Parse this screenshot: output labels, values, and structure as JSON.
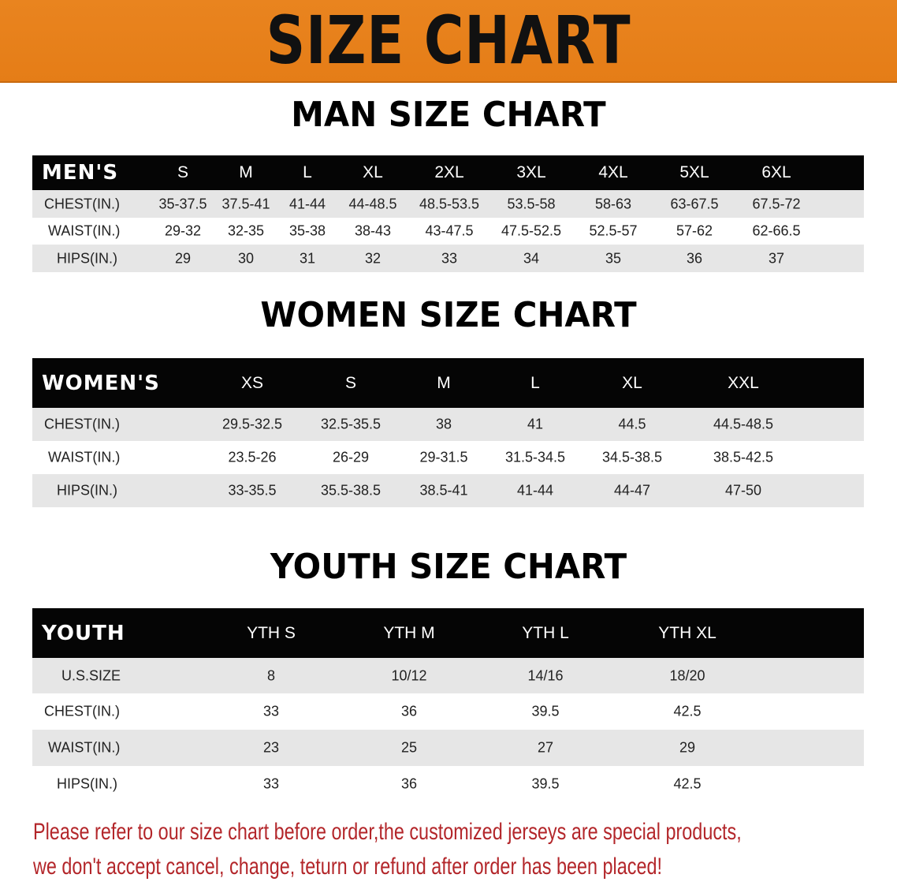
{
  "banner": {
    "title": "SIZE CHART",
    "color": "#e8821e"
  },
  "men": {
    "title": "MAN SIZE CHART",
    "header": [
      "MEN'S",
      "S",
      "M",
      "L",
      "XL",
      "2XL",
      "3XL",
      "4XL",
      "5XL",
      "6XL"
    ],
    "rows": [
      [
        "CHEST(IN.)",
        "35-37.5",
        "37.5-41",
        "41-44",
        "44-48.5",
        "48.5-53.5",
        "53.5-58",
        "58-63",
        "63-67.5",
        "67.5-72"
      ],
      [
        "WAIST(IN.)",
        "29-32",
        "32-35",
        "35-38",
        "38-43",
        "43-47.5",
        "47.5-52.5",
        "52.5-57",
        "57-62",
        "62-66.5"
      ],
      [
        "HIPS(IN.)",
        "29",
        "30",
        "31",
        "32",
        "33",
        "34",
        "35",
        "36",
        "37"
      ]
    ]
  },
  "women": {
    "title": "WOMEN SIZE CHART",
    "header": [
      "WOMEN'S",
      "XS",
      "S",
      "M",
      "L",
      "XL",
      "XXL"
    ],
    "rows": [
      [
        "CHEST(IN.)",
        "29.5-32.5",
        "32.5-35.5",
        "38",
        "41",
        "44.5",
        "44.5-48.5"
      ],
      [
        "WAIST(IN.)",
        "23.5-26",
        "26-29",
        "29-31.5",
        "31.5-34.5",
        "34.5-38.5",
        "38.5-42.5"
      ],
      [
        "HIPS(IN.)",
        "33-35.5",
        "35.5-38.5",
        "38.5-41",
        "41-44",
        "44-47",
        "47-50"
      ]
    ]
  },
  "youth": {
    "title": "YOUTH SIZE CHART",
    "header": [
      "YOUTH",
      "YTH S",
      "YTH M",
      "YTH L",
      "YTH XL"
    ],
    "rows": [
      [
        "U.S.SIZE",
        "8",
        "10/12",
        "14/16",
        "18/20"
      ],
      [
        "CHEST(IN.)",
        "33",
        "36",
        "39.5",
        "42.5"
      ],
      [
        "WAIST(IN.)",
        "23",
        "25",
        "27",
        "29"
      ],
      [
        "HIPS(IN.)",
        "33",
        "36",
        "39.5",
        "42.5"
      ]
    ]
  },
  "notice": {
    "line1": "Please refer to our size chart before order,the customized jerseys are special products,",
    "line2": "we don't accept cancel, change, teturn or refund after order has been placed!",
    "color": "#b3262a"
  }
}
